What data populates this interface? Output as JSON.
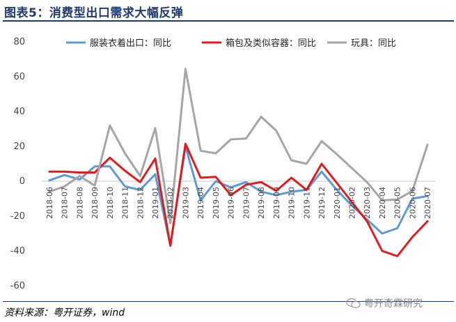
{
  "header": {
    "title": "图表5：消费型出口需求大幅反弹"
  },
  "footer": {
    "source": "资料来源：粤开证券，wind",
    "watermark": "粤开奇霖研究",
    "watermark_icon": "wechat-icon"
  },
  "chart_data": {
    "type": "line",
    "categories": [
      "2018-06",
      "2018-07",
      "2018-08",
      "2018-09",
      "2018-10",
      "2018-11",
      "2018-12",
      "2019-01",
      "2019-02",
      "2019-03",
      "2019-04",
      "2019-05",
      "2019-06",
      "2019-07",
      "2019-08",
      "2019-09",
      "2019-10",
      "2019-11",
      "2019-12",
      "2020-01",
      "2020-02",
      "2020-03",
      "2020-04",
      "2020-05",
      "2020-06",
      "2020-07"
    ],
    "yticks": [
      80,
      60,
      40,
      20,
      0,
      -20,
      -40,
      -60
    ],
    "ylim": [
      -60,
      80
    ],
    "legend_position": "top",
    "series": [
      {
        "name": "服装衣着出口：同比",
        "color": "#5b9bd5",
        "values": [
          0.5,
          3.5,
          1,
          8.5,
          8.5,
          -3,
          -5,
          4,
          -37,
          20,
          -11,
          0,
          -3.5,
          -0.5,
          -6,
          -8,
          -6,
          -5,
          5.5,
          -5,
          -14,
          -22,
          -30,
          -27,
          -10,
          -8.5
        ]
      },
      {
        "name": "箱包及类似容器：同比",
        "color": "#e31a1c",
        "values": [
          5.5,
          5.5,
          5,
          5,
          13.5,
          6,
          -0.5,
          13,
          -37,
          21.5,
          2,
          2.5,
          -8,
          -2,
          -0.5,
          -5.5,
          2,
          -5,
          10,
          -1,
          -12,
          -23,
          -40,
          -43,
          -32,
          -23
        ]
      },
      {
        "name": "玩具：同比",
        "color": "#a5a5a5",
        "values": [
          -6,
          -3,
          3,
          -2.5,
          32,
          16,
          3,
          30.5,
          -24,
          64.5,
          17.5,
          16,
          24,
          24.5,
          37,
          29,
          12,
          10,
          23,
          15.5,
          7.5,
          -0.5,
          -11,
          -10.5,
          -5.5,
          21
        ]
      }
    ]
  }
}
